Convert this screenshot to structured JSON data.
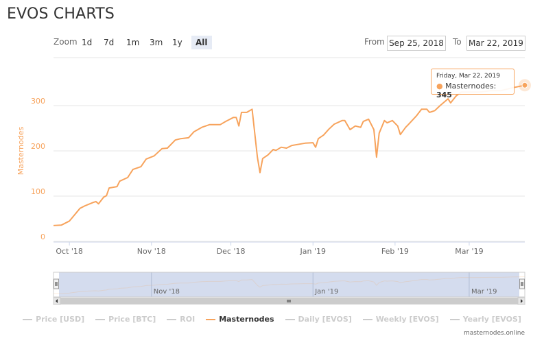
{
  "header": {
    "title": "EVOS CHARTS"
  },
  "range_selector": {
    "label": "Zoom",
    "buttons": [
      "1d",
      "7d",
      "1m",
      "3m",
      "1y",
      "All"
    ],
    "selected": 5,
    "from_label": "From",
    "from": "Sep 25, 2018",
    "to_label": "To",
    "to": "Mar 22, 2019"
  },
  "chart_data": {
    "type": "line",
    "y_label": "Masternodes",
    "x": [
      "2018-09-25",
      "2018-09-28",
      "2018-10-01",
      "2018-10-02",
      "2018-10-05",
      "2018-10-07",
      "2018-10-10",
      "2018-10-11",
      "2018-10-12",
      "2018-10-14",
      "2018-10-15",
      "2018-10-16",
      "2018-10-19",
      "2018-10-20",
      "2018-10-23",
      "2018-10-25",
      "2018-10-28",
      "2018-10-30",
      "2018-11-02",
      "2018-11-05",
      "2018-11-07",
      "2018-11-10",
      "2018-11-12",
      "2018-11-15",
      "2018-11-17",
      "2018-11-20",
      "2018-11-23",
      "2018-11-27",
      "2018-11-29",
      "2018-12-02",
      "2018-12-03",
      "2018-12-04",
      "2018-12-05",
      "2018-12-07",
      "2018-12-09",
      "2018-12-11",
      "2018-12-12",
      "2018-12-13",
      "2018-12-15",
      "2018-12-17",
      "2018-12-18",
      "2018-12-20",
      "2018-12-22",
      "2018-12-24",
      "2018-12-26",
      "2018-12-29",
      "2019-01-01",
      "2019-01-02",
      "2019-01-03",
      "2019-01-05",
      "2019-01-07",
      "2019-01-09",
      "2019-01-12",
      "2019-01-13",
      "2019-01-15",
      "2019-01-17",
      "2019-01-19",
      "2019-01-20",
      "2019-01-22",
      "2019-01-24",
      "2019-01-25",
      "2019-01-26",
      "2019-01-28",
      "2019-01-29",
      "2019-01-31",
      "2019-02-02",
      "2019-02-03",
      "2019-02-05",
      "2019-02-06",
      "2019-02-09",
      "2019-02-11",
      "2019-02-13",
      "2019-02-14",
      "2019-02-16",
      "2019-02-18",
      "2019-02-21",
      "2019-02-22",
      "2019-02-24",
      "2019-02-26",
      "2019-03-01",
      "2019-03-05",
      "2019-03-09",
      "2019-03-13",
      "2019-03-17",
      "2019-03-22"
    ],
    "series": [
      {
        "name": "Masternodes",
        "color": "#f7a35c",
        "values": [
          35,
          36,
          45,
          52,
          73,
          79,
          86,
          88,
          83,
          98,
          101,
          118,
          121,
          133,
          141,
          159,
          165,
          182,
          189,
          205,
          206,
          224,
          227,
          229,
          242,
          252,
          258,
          258,
          265,
          274,
          274,
          255,
          285,
          285,
          292,
          186,
          152,
          183,
          191,
          203,
          201,
          208,
          206,
          212,
          214,
          217,
          218,
          208,
          227,
          235,
          248,
          259,
          267,
          267,
          247,
          255,
          252,
          265,
          270,
          247,
          186,
          239,
          267,
          262,
          267,
          255,
          236,
          252,
          258,
          277,
          292,
          292,
          285,
          289,
          300,
          315,
          306,
          321,
          330,
          330,
          330,
          333,
          333,
          339,
          345
        ]
      }
    ],
    "xlim": [
      "2018-09-25",
      "2019-03-22"
    ],
    "xticks": [
      {
        "value": "2018-10-01",
        "label": "Oct '18"
      },
      {
        "value": "2018-11-01",
        "label": "Nov '18"
      },
      {
        "value": "2018-12-01",
        "label": "Dec '18"
      },
      {
        "value": "2019-01-01",
        "label": "Jan '19"
      },
      {
        "value": "2019-02-01",
        "label": "Feb '19"
      },
      {
        "value": "2019-03-01",
        "label": "Mar '19"
      }
    ],
    "ylim": [
      0,
      400
    ],
    "yticks": [
      0,
      100,
      200,
      300
    ],
    "grid": true,
    "tooltip_date": "Friday, Mar 22, 2019",
    "legend": {
      "hidden_before": [
        "Price [USD]",
        "Price [BTC]",
        "ROI"
      ],
      "hidden_after": [
        "Daily [EVOS]",
        "Weekly [EVOS]",
        "Yearly [EVOS]"
      ]
    }
  },
  "credit": "masternodes.online"
}
